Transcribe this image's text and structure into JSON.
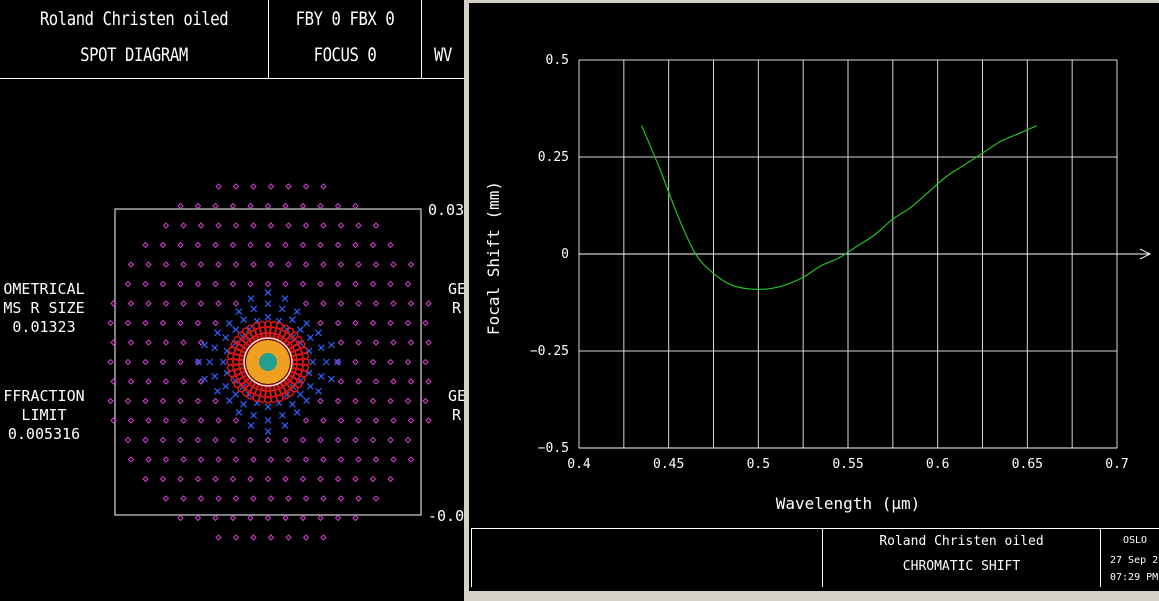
{
  "spot": {
    "header": {
      "title": "Roland Christen oiled",
      "subtitle": "SPOT DIAGRAM",
      "field": "FBY 0 FBX 0",
      "focus": "FOCUS 0",
      "wv": "WV"
    },
    "left_labels": {
      "geom_line1": "OMETRICAL",
      "geom_line2": "MS R SIZE",
      "geom_value": "0.01323",
      "diff_line1": "FFRACTION",
      "diff_line2": "LIMIT",
      "diff_value": "0.005316"
    },
    "right_labels": {
      "scale_top": "0.03",
      "scale_bottom": "-0.0",
      "ge1": "GE",
      "r1": "R",
      "ge2": "GE",
      "r2": "R"
    },
    "colors": {
      "outer_spots": "#d040d0",
      "mid_spots": "#3060ff",
      "inner_spots": "#e01818",
      "core": "#f0a020",
      "center": "#20a090"
    }
  },
  "chromatic": {
    "footer": {
      "title": "Roland Christen oiled",
      "subtitle": "CHROMATIC SHIFT",
      "program": "OSLO",
      "date": "27 Sep 2",
      "time": "07:29 PM"
    }
  },
  "chart_data": {
    "type": "line",
    "title": "",
    "xlabel": "Wavelength (μm)",
    "ylabel": "Focal Shift (mm)",
    "xlim": [
      0.4,
      0.7
    ],
    "ylim": [
      -0.5,
      0.5
    ],
    "x_ticks": [
      "0.4",
      "0.45",
      "0.5",
      "0.55",
      "0.6",
      "0.65",
      "0.7"
    ],
    "y_ticks": [
      "0.5",
      "0.25",
      "0",
      "−0.25",
      "−0.5"
    ],
    "grid": true,
    "series": [
      {
        "color": "#22c022",
        "x": [
          0.435,
          0.445,
          0.455,
          0.465,
          0.475,
          0.485,
          0.495,
          0.505,
          0.515,
          0.525,
          0.535,
          0.545,
          0.555,
          0.565,
          0.575,
          0.585,
          0.595,
          0.605,
          0.615,
          0.625,
          0.635,
          0.645,
          0.655
        ],
        "y": [
          0.33,
          0.22,
          0.1,
          0.0,
          -0.05,
          -0.08,
          -0.09,
          -0.09,
          -0.08,
          -0.06,
          -0.03,
          -0.01,
          0.02,
          0.05,
          0.09,
          0.12,
          0.16,
          0.2,
          0.23,
          0.26,
          0.29,
          0.31,
          0.33
        ]
      }
    ]
  }
}
